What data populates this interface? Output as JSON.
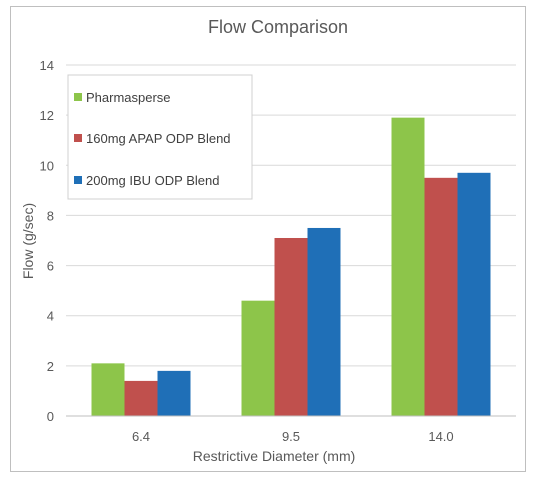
{
  "chart_data": {
    "type": "bar",
    "title": "Flow Comparison",
    "xlabel": "Restrictive Diameter (mm)",
    "ylabel": "Flow (g/sec)",
    "categories": [
      "6.4",
      "9.5",
      "14.0"
    ],
    "ylim": [
      0,
      14
    ],
    "yticks": [
      0,
      2,
      4,
      6,
      8,
      10,
      12,
      14
    ],
    "grid": true,
    "legend": "top-left",
    "series": [
      {
        "name": "Pharmasperse",
        "color": "#8dc54a",
        "values": [
          2.1,
          4.6,
          11.9
        ]
      },
      {
        "name": "160mg APAP ODP Blend",
        "color": "#c0504d",
        "values": [
          1.4,
          7.1,
          9.5
        ]
      },
      {
        "name": "200mg IBU ODP Blend",
        "color": "#1f6fb7",
        "values": [
          1.8,
          7.5,
          9.7
        ]
      }
    ]
  }
}
